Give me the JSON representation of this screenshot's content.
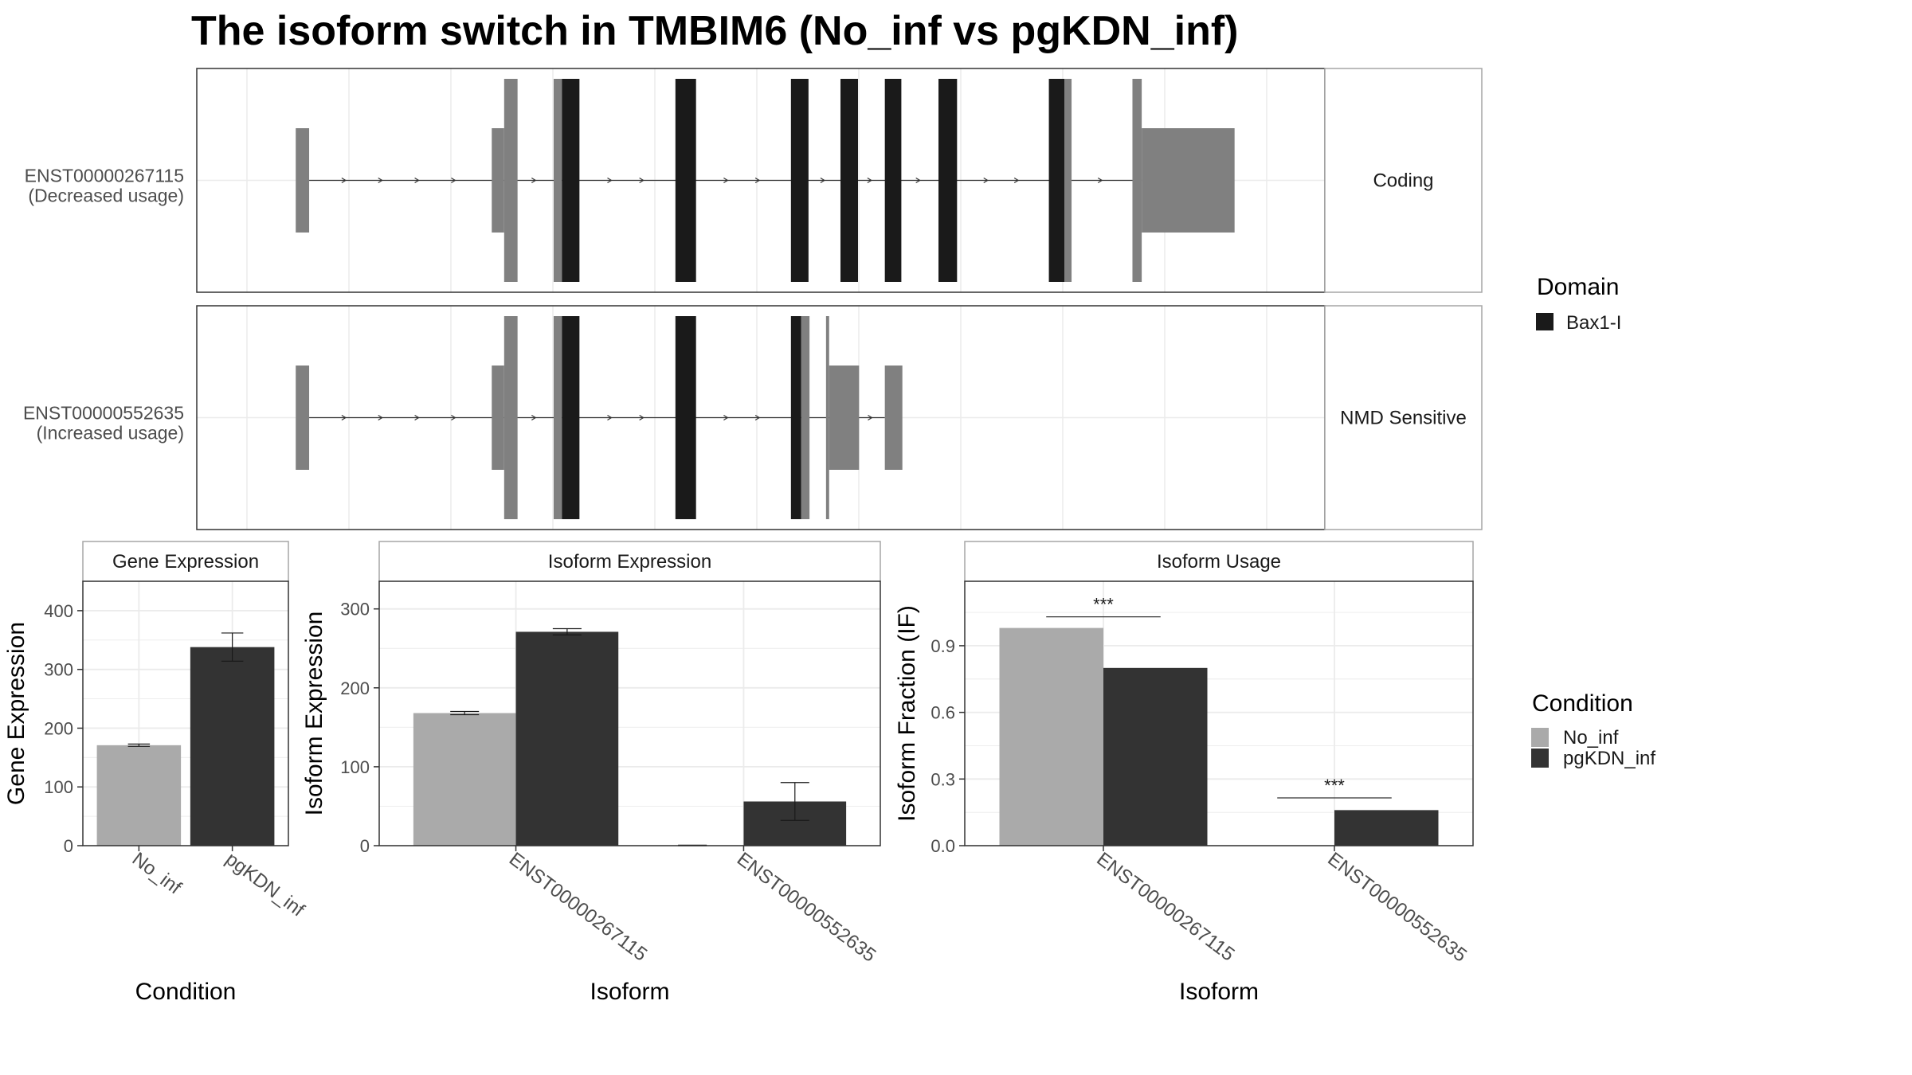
{
  "title": "The isoform switch in TMBIM6 (No_inf vs pgKDN_inf)",
  "colors": {
    "utr": "#808080",
    "domain": "#1a1a1a",
    "no_inf": "#aaaaaa",
    "pgkdn_inf": "#333333",
    "grid": "#ebebeb",
    "panel_border": "#333333",
    "strip_border": "#a6a6a6"
  },
  "structure": {
    "transcripts": [
      {
        "id": "ENST00000267115",
        "usage": "(Decreased usage)",
        "type": "Coding",
        "exons": [
          {
            "start": 0.055,
            "end": 0.068,
            "kind": "utr"
          },
          {
            "start": 0.245,
            "end": 0.257,
            "kind": "utr"
          },
          {
            "start": 0.257,
            "end": 0.27,
            "kind": "cds"
          },
          {
            "start": 0.305,
            "end": 0.313,
            "kind": "cds"
          },
          {
            "start": 0.313,
            "end": 0.33,
            "kind": "domain"
          },
          {
            "start": 0.423,
            "end": 0.443,
            "kind": "domain"
          },
          {
            "start": 0.535,
            "end": 0.552,
            "kind": "domain"
          },
          {
            "start": 0.583,
            "end": 0.6,
            "kind": "domain"
          },
          {
            "start": 0.626,
            "end": 0.642,
            "kind": "domain"
          },
          {
            "start": 0.678,
            "end": 0.696,
            "kind": "domain"
          },
          {
            "start": 0.785,
            "end": 0.8,
            "kind": "domain"
          },
          {
            "start": 0.8,
            "end": 0.807,
            "kind": "cds"
          },
          {
            "start": 0.866,
            "end": 0.875,
            "kind": "cds"
          },
          {
            "start": 0.875,
            "end": 0.965,
            "kind": "utr"
          }
        ]
      },
      {
        "id": "ENST00000552635",
        "usage": "(Increased usage)",
        "type": "NMD Sensitive",
        "exons": [
          {
            "start": 0.055,
            "end": 0.068,
            "kind": "utr"
          },
          {
            "start": 0.245,
            "end": 0.257,
            "kind": "utr"
          },
          {
            "start": 0.257,
            "end": 0.27,
            "kind": "cds"
          },
          {
            "start": 0.305,
            "end": 0.313,
            "kind": "cds"
          },
          {
            "start": 0.313,
            "end": 0.33,
            "kind": "domain"
          },
          {
            "start": 0.423,
            "end": 0.443,
            "kind": "domain"
          },
          {
            "start": 0.535,
            "end": 0.545,
            "kind": "domain"
          },
          {
            "start": 0.545,
            "end": 0.553,
            "kind": "cds"
          },
          {
            "start": 0.569,
            "end": 0.572,
            "kind": "cds"
          },
          {
            "start": 0.572,
            "end": 0.601,
            "kind": "utr"
          },
          {
            "start": 0.626,
            "end": 0.643,
            "kind": "utr"
          }
        ]
      }
    ]
  },
  "legends": {
    "domain": {
      "title": "Domain",
      "items": [
        "Bax1-I"
      ]
    },
    "condition": {
      "title": "Condition",
      "items": [
        "No_inf",
        "pgKDN_inf"
      ]
    }
  },
  "chart_data": [
    {
      "type": "bar",
      "strip": "Gene Expression",
      "xlabel": "Condition",
      "ylabel": "Gene Expression",
      "ylim": [
        0,
        450
      ],
      "yticks": [
        0,
        100,
        200,
        300,
        400
      ],
      "categories": [
        "No_inf",
        "pgKDN_inf"
      ],
      "values": [
        171,
        338
      ],
      "errors": [
        [
          169,
          173
        ],
        [
          314,
          362
        ]
      ]
    },
    {
      "type": "bar",
      "strip": "Isoform Expression",
      "xlabel": "Isoform",
      "ylabel": "Isoform Expression",
      "ylim": [
        0,
        335
      ],
      "yticks": [
        0,
        100,
        200,
        300
      ],
      "categories": [
        "ENST00000267115",
        "ENST00000552635"
      ],
      "series": [
        {
          "name": "No_inf",
          "values": [
            168,
            0.3
          ],
          "errors": [
            [
              166,
              170
            ],
            [
              0,
              0.6
            ]
          ]
        },
        {
          "name": "pgKDN_inf",
          "values": [
            271,
            56
          ],
          "errors": [
            [
              267,
              275
            ],
            [
              32,
              80
            ]
          ]
        }
      ]
    },
    {
      "type": "bar",
      "strip": "Isoform Usage",
      "xlabel": "Isoform",
      "ylabel": "Isoform Fraction (IF)",
      "ylim": [
        0,
        1.19
      ],
      "yticks": [
        "0.0",
        "0.3",
        "0.6",
        "0.9"
      ],
      "categories": [
        "ENST00000267115",
        "ENST00000552635"
      ],
      "series": [
        {
          "name": "No_inf",
          "values": [
            0.98,
            0.0
          ]
        },
        {
          "name": "pgKDN_inf",
          "values": [
            0.8,
            0.16
          ]
        }
      ],
      "significance": [
        {
          "label": "***",
          "y": 1.03
        },
        {
          "label": "***",
          "y": 0.215
        }
      ]
    }
  ]
}
